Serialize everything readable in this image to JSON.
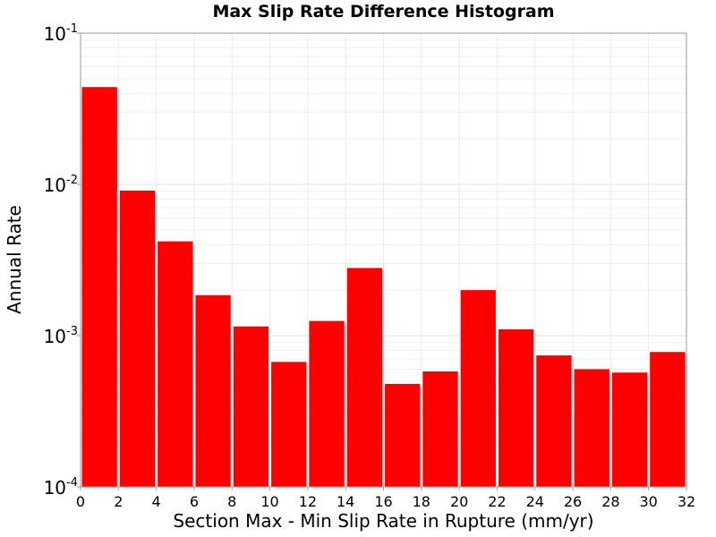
{
  "chart_data": {
    "type": "bar",
    "title": "Max Slip Rate Difference Histogram",
    "xlabel": "Section Max - Min Slip Rate in Rupture (mm/yr)",
    "ylabel": "Annual Rate",
    "y_scale": "log",
    "xlim": [
      0,
      32
    ],
    "ylim": [
      0.0001,
      0.1
    ],
    "grid": true,
    "bar_color": "#ff0000",
    "x_ticks": [
      "0",
      "2",
      "4",
      "6",
      "8",
      "10",
      "12",
      "14",
      "16",
      "18",
      "20",
      "22",
      "24",
      "26",
      "28",
      "30",
      "32"
    ],
    "y_ticks": [
      {
        "base": "10",
        "exp": "-1"
      },
      {
        "base": "10",
        "exp": "-2"
      },
      {
        "base": "10",
        "exp": "-3"
      },
      {
        "base": "10",
        "exp": "-4"
      }
    ],
    "bins": [
      {
        "x0": 0,
        "x1": 2,
        "value": 0.044
      },
      {
        "x0": 2,
        "x1": 4,
        "value": 0.0091
      },
      {
        "x0": 4,
        "x1": 6,
        "value": 0.0042
      },
      {
        "x0": 6,
        "x1": 8,
        "value": 0.00185
      },
      {
        "x0": 8,
        "x1": 10,
        "value": 0.00115
      },
      {
        "x0": 10,
        "x1": 12,
        "value": 0.00067
      },
      {
        "x0": 12,
        "x1": 14,
        "value": 0.00125
      },
      {
        "x0": 14,
        "x1": 16,
        "value": 0.0028
      },
      {
        "x0": 16,
        "x1": 18,
        "value": 0.00048
      },
      {
        "x0": 18,
        "x1": 20,
        "value": 0.00058
      },
      {
        "x0": 20,
        "x1": 22,
        "value": 0.002
      },
      {
        "x0": 22,
        "x1": 24,
        "value": 0.0011
      },
      {
        "x0": 24,
        "x1": 26,
        "value": 0.00074
      },
      {
        "x0": 26,
        "x1": 28,
        "value": 0.0006
      },
      {
        "x0": 28,
        "x1": 30,
        "value": 0.00057
      },
      {
        "x0": 30,
        "x1": 32,
        "value": 0.00078
      }
    ]
  }
}
